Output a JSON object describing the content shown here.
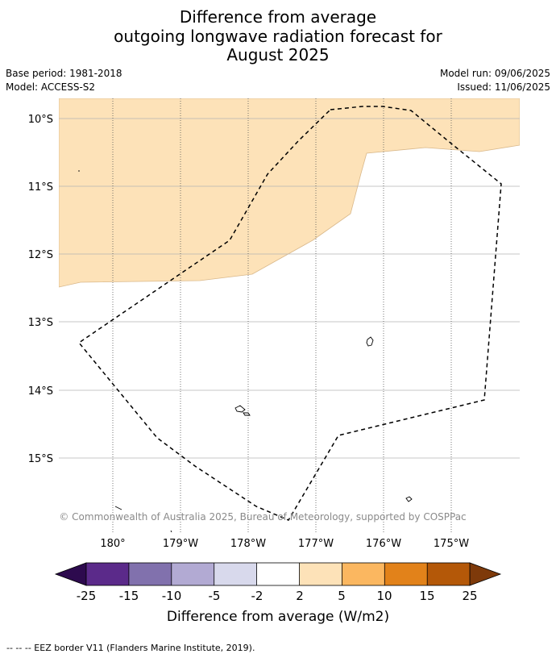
{
  "title": {
    "line1": "Difference from average",
    "line2": "outgoing longwave radiation forecast for",
    "line3": "August 2025"
  },
  "meta": {
    "base_period": "Base period: 1981-2018",
    "model": "Model: ACCESS-S2",
    "model_run": "Model run: 09/06/2025",
    "issued": "Issued: 11/06/2025"
  },
  "map": {
    "lat_labels": [
      "10°S",
      "11°S",
      "12°S",
      "13°S",
      "14°S",
      "15°S"
    ],
    "lon_labels": [
      "180°",
      "179°W",
      "178°W",
      "177°W",
      "176°W",
      "175°W"
    ],
    "attribution": "© Commonwealth of Australia 2025, Bureau of Meteorology, supported by COSPPac",
    "anomaly_fill_color": "#fde2b8",
    "eez_line_color": "#000000"
  },
  "colorbar": {
    "tick_labels": [
      "-25",
      "-15",
      "-10",
      "-5",
      "-2",
      "2",
      "5",
      "10",
      "15",
      "25"
    ],
    "bins": [
      "#5b2a8a",
      "#8171ad",
      "#b2aad3",
      "#d8d9ec",
      "#ffffff",
      "#fde2b8",
      "#fbb760",
      "#e2821a",
      "#b45808"
    ],
    "low_extend_color": "#2d0a4e",
    "high_extend_color": "#7e3a0a",
    "label": "Difference from average (W/m2)"
  },
  "footer": {
    "legend_text": "--  --  -- EEZ border V11 (Flanders Marine Institute, 2019)."
  }
}
